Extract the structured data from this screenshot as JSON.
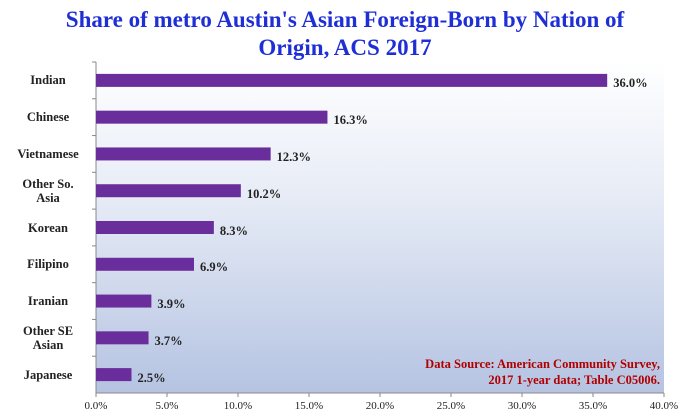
{
  "title_lines": [
    "Share of metro Austin's Asian Foreign-Born by Nation of",
    "Origin, ACS 2017"
  ],
  "source_lines": [
    "Data Source:  American Community Survey,",
    "2017 1-year data; Table C05006."
  ],
  "colors": {
    "bar": "#6a2e9c",
    "title": "#1f2fd6",
    "source": "#b00000"
  },
  "chart_data": {
    "type": "bar",
    "orientation": "horizontal",
    "title": "Share of metro Austin's Asian Foreign-Born by Nation of Origin, ACS 2017",
    "categories": [
      "Indian",
      "Chinese",
      "Vietnamese",
      "Other So. Asia",
      "Korean",
      "Filipino",
      "Iranian",
      "Other SE Asian",
      "Japanese"
    ],
    "category_lines": [
      [
        "Indian"
      ],
      [
        "Chinese"
      ],
      [
        "Vietnamese"
      ],
      [
        "Other So.",
        "Asia"
      ],
      [
        "Korean"
      ],
      [
        "Filipino"
      ],
      [
        "Iranian"
      ],
      [
        "Other SE",
        "Asian"
      ],
      [
        "Japanese"
      ]
    ],
    "values": [
      36.0,
      16.3,
      12.3,
      10.2,
      8.3,
      6.9,
      3.9,
      3.7,
      2.5
    ],
    "value_labels": [
      "36.0%",
      "16.3%",
      "12.3%",
      "10.2%",
      "8.3%",
      "6.9%",
      "3.9%",
      "3.7%",
      "2.5%"
    ],
    "xlim": [
      0,
      40
    ],
    "xticks": [
      0,
      5,
      10,
      15,
      20,
      25,
      30,
      35,
      40
    ],
    "xtick_labels": [
      "0.0%",
      "5.0%",
      "10.0%",
      "15.0%",
      "20.0%",
      "25.0%",
      "30.0%",
      "35.0%",
      "40.0%"
    ],
    "xlabel": "",
    "ylabel": "",
    "grid": false,
    "legend": false
  }
}
